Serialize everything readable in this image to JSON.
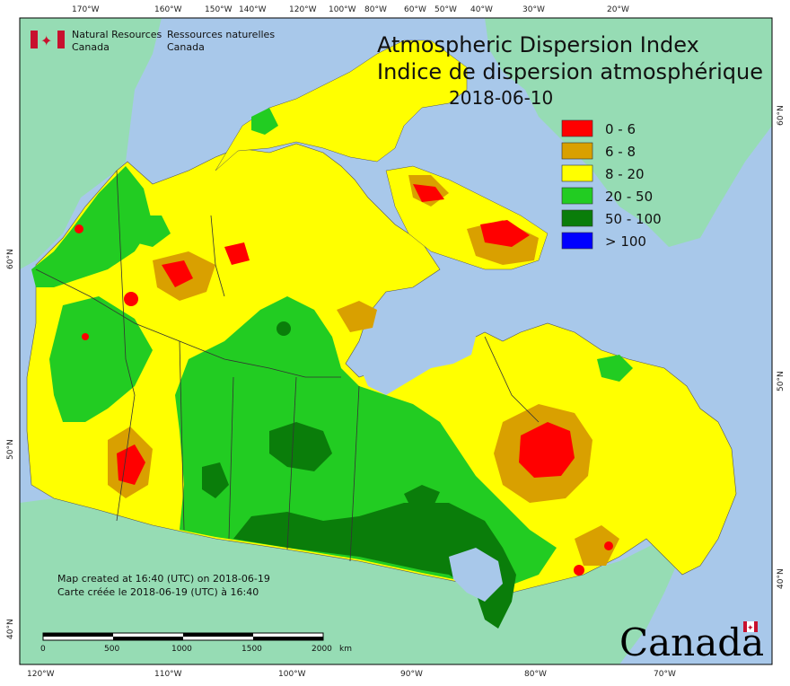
{
  "map": {
    "title_en": "Atmospheric Dispersion Index",
    "title_fr": "Indice de dispersion atmosphérique",
    "date": "2018-06-10",
    "colors": {
      "ocean": "#a8c8ea",
      "land_outside": "#96dcb4",
      "frame": "#000000"
    }
  },
  "legend": {
    "items": [
      {
        "label": "0 - 6",
        "color": "#ff0000"
      },
      {
        "label": "6 - 8",
        "color": "#d9a000"
      },
      {
        "label": "8 - 20",
        "color": "#ffff00"
      },
      {
        "label": "20 - 50",
        "color": "#22cc22"
      },
      {
        "label": "50 - 100",
        "color": "#0a7d0a"
      },
      {
        "label": "> 100",
        "color": "#0000ff"
      }
    ]
  },
  "header": {
    "nrcan_en_1": "Natural Resources",
    "nrcan_en_2": "Canada",
    "nrcan_fr_1": "Ressources naturelles",
    "nrcan_fr_2": "Canada"
  },
  "footer": {
    "created_en": "Map created at 16:40 (UTC) on 2018-06-19",
    "created_fr": "Carte créée le 2018-06-19 (UTC) à 16:40",
    "wordmark": "Canada"
  },
  "scale": {
    "labels": [
      "0",
      "500",
      "1000",
      "1500",
      "2000"
    ],
    "unit": "km"
  },
  "graticule": {
    "top": [
      "170°W",
      "160°W",
      "150°W",
      "140°W",
      "120°W",
      "100°W",
      "80°W",
      "60°W",
      "50°W",
      "40°W",
      "30°W",
      "20°W"
    ],
    "bottom": [
      "120°W",
      "110°W",
      "100°W",
      "90°W",
      "80°W",
      "70°W"
    ],
    "left": [
      "60°N",
      "50°N",
      "40°N"
    ],
    "right": [
      "60°N",
      "50°N",
      "40°N"
    ]
  }
}
